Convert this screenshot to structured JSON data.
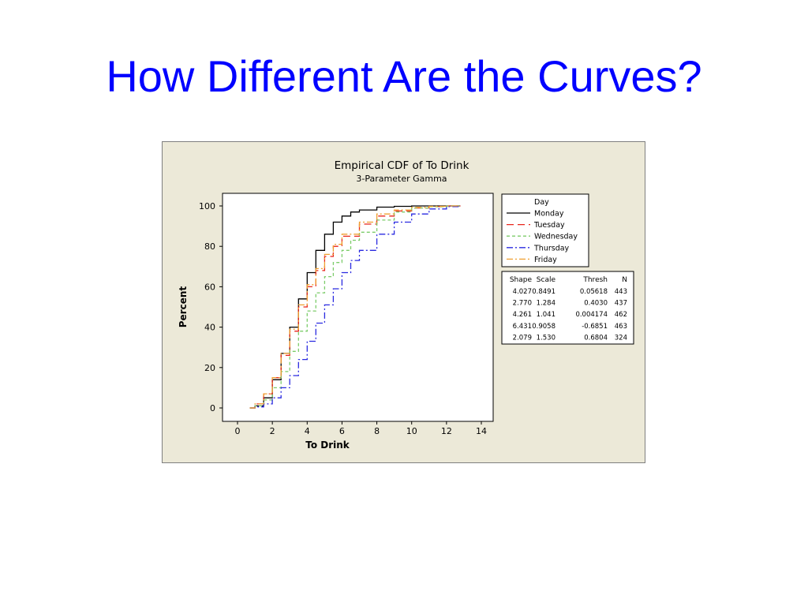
{
  "slide": {
    "title": "How Different Are the Curves?"
  },
  "colors": {
    "title": "#0000ff",
    "figure_background": "#ece9d8",
    "plot_background": "#ffffff",
    "Monday": "#000000",
    "Tuesday": "#e8261c",
    "Wednesday": "#7ccc6a",
    "Thursday": "#2a2ae0",
    "Friday": "#f0a030"
  },
  "chart_data": {
    "type": "line",
    "title": "Empirical CDF of To Drink",
    "subtitle": "3-Parameter Gamma",
    "xlabel": "To Drink",
    "ylabel": "Percent",
    "xlim": [
      0,
      14
    ],
    "ylim": [
      0,
      100
    ],
    "x_ticks": [
      0,
      2,
      4,
      6,
      8,
      10,
      12,
      14
    ],
    "y_ticks": [
      0,
      20,
      40,
      60,
      80,
      100
    ],
    "grid": false,
    "legend": {
      "title": "Day",
      "placement": "right",
      "entries": [
        {
          "name": "Monday",
          "color": "#000000",
          "dash": "solid"
        },
        {
          "name": "Tuesday",
          "color": "#e8261c",
          "dash": "long-dash"
        },
        {
          "name": "Wednesday",
          "color": "#7ccc6a",
          "dash": "short-dash"
        },
        {
          "name": "Thursday",
          "color": "#2a2ae0",
          "dash": "dash-dot"
        },
        {
          "name": "Friday",
          "color": "#f0a030",
          "dash": "dash-dot"
        }
      ]
    },
    "param_table": {
      "headers": [
        "Shape",
        "Scale",
        "Thresh",
        "N"
      ],
      "rows": [
        [
          "4.027",
          "0.8491",
          "0.05618",
          "443"
        ],
        [
          "2.770",
          "1.284",
          "0.4030",
          "437"
        ],
        [
          "4.261",
          "1.041",
          "0.004174",
          "462"
        ],
        [
          "6.431",
          "0.9058",
          "-0.6851",
          "463"
        ],
        [
          "2.079",
          "1.530",
          "0.6804",
          "324"
        ]
      ]
    },
    "series": [
      {
        "name": "Monday",
        "x": [
          0.7,
          1.0,
          1.5,
          2.0,
          2.5,
          3.0,
          3.5,
          4.0,
          4.5,
          5.0,
          5.5,
          6.0,
          6.5,
          7.0,
          8.0,
          9.0,
          10.0,
          11.0,
          12.0,
          12.8
        ],
        "y": [
          0,
          1,
          5,
          14,
          27,
          40,
          54,
          67,
          78,
          86,
          92,
          95,
          97,
          98,
          99.4,
          99.8,
          100,
          100,
          100,
          100
        ]
      },
      {
        "name": "Tuesday",
        "x": [
          0.7,
          1.0,
          1.5,
          2.0,
          2.5,
          3.0,
          3.5,
          4.0,
          4.5,
          5.0,
          5.5,
          6.0,
          7.0,
          8.0,
          9.0,
          10.0,
          11.0,
          12.0,
          12.8
        ],
        "y": [
          0,
          2,
          7,
          15,
          26,
          38,
          50,
          60,
          68,
          75,
          80,
          85,
          91,
          95,
          97.5,
          99,
          99.7,
          100,
          100
        ]
      },
      {
        "name": "Wednesday",
        "x": [
          0.7,
          1.0,
          1.5,
          2.0,
          2.5,
          3.0,
          3.5,
          4.0,
          4.5,
          5.0,
          5.5,
          6.0,
          6.5,
          7.0,
          8.0,
          9.0,
          10.0,
          11.0,
          12.0,
          12.8
        ],
        "y": [
          0,
          1,
          4,
          10,
          18,
          28,
          38,
          48,
          57,
          65,
          72,
          78,
          83,
          87,
          93,
          97,
          99,
          99.6,
          100,
          100
        ]
      },
      {
        "name": "Thursday",
        "x": [
          0.7,
          1.0,
          1.5,
          2.0,
          2.5,
          3.0,
          3.5,
          4.0,
          4.5,
          5.0,
          5.5,
          6.0,
          6.5,
          7.0,
          8.0,
          9.0,
          10.0,
          11.0,
          12.0,
          12.8
        ],
        "y": [
          0,
          0.5,
          2,
          5,
          10,
          16,
          24,
          33,
          42,
          51,
          59,
          67,
          73,
          78,
          86,
          92,
          96,
          98.5,
          99.7,
          100
        ]
      },
      {
        "name": "Friday",
        "x": [
          0.7,
          1.0,
          1.5,
          2.0,
          2.5,
          3.0,
          3.5,
          4.0,
          4.5,
          5.0,
          5.5,
          6.0,
          7.0,
          8.0,
          9.0,
          10.0,
          11.0,
          12.0,
          12.8
        ],
        "y": [
          0,
          2,
          7,
          15,
          27,
          39,
          51,
          61,
          69,
          76,
          81,
          86,
          92,
          96,
          98,
          99.3,
          99.8,
          100,
          100
        ]
      }
    ]
  }
}
